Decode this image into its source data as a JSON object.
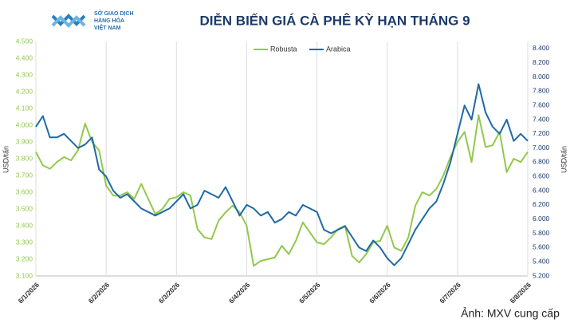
{
  "logo": [
    "SỞ GIAO DỊCH",
    "HÀNG HÓA",
    "VIỆT NAM"
  ],
  "caption": "Ảnh: MXV cung cấp",
  "chart_data": {
    "type": "line",
    "title": "DIỄN BIẾN GIÁ CÀ PHÊ KỲ HẠN THÁNG 9",
    "y_label": "USD/tấn",
    "y2_label": "USD/tấn",
    "legend": "top",
    "categories": [
      "6/1/2026",
      null,
      null,
      null,
      null,
      null,
      null,
      null,
      null,
      null,
      "6/2/2026",
      null,
      null,
      null,
      null,
      null,
      null,
      null,
      null,
      null,
      "6/3/2026",
      null,
      null,
      null,
      null,
      null,
      null,
      null,
      null,
      null,
      "6/4/2026",
      null,
      null,
      null,
      null,
      null,
      null,
      null,
      null,
      null,
      "6/5/2026",
      null,
      null,
      null,
      null,
      null,
      null,
      null,
      null,
      null,
      "6/6/2026",
      null,
      null,
      null,
      null,
      null,
      null,
      null,
      null,
      null,
      "6/7/2026",
      null,
      null,
      null,
      null,
      null,
      null,
      null,
      null,
      null,
      "6/8/2026"
    ],
    "series": [
      {
        "name": "Robusta",
        "color": "#92c84c",
        "values": [
          3840,
          3760,
          3740,
          3780,
          3810,
          3790,
          3850,
          4010,
          3900,
          3850,
          3640,
          3580,
          3580,
          3600,
          3560,
          3650,
          3560,
          3470,
          3500,
          3560,
          3570,
          3600,
          3580,
          3380,
          3330,
          3320,
          3430,
          3480,
          3520,
          3480,
          3400,
          3160,
          3190,
          3200,
          3210,
          3280,
          3230,
          3310,
          3420,
          3360,
          3300,
          3290,
          3330,
          3380,
          3400,
          3220,
          3180,
          3230,
          3300,
          3310,
          3400,
          3270,
          3250,
          3330,
          3520,
          3600,
          3580,
          3620,
          3700,
          3810,
          3900,
          3960,
          3780,
          4060,
          3870,
          3880,
          3960,
          3720,
          3800,
          3780,
          3840
        ]
      },
      {
        "name": "Arabica",
        "color": "#1f6aa5",
        "axis": "y2",
        "values": [
          7300,
          7450,
          7150,
          7150,
          7200,
          7100,
          7000,
          7050,
          7150,
          6700,
          6600,
          6400,
          6300,
          6350,
          6250,
          6150,
          6100,
          6050,
          6100,
          6150,
          6250,
          6350,
          6150,
          6200,
          6400,
          6350,
          6300,
          6450,
          6250,
          6050,
          6200,
          6150,
          6050,
          6100,
          5950,
          6000,
          6100,
          6050,
          6200,
          6150,
          6100,
          5850,
          5800,
          5850,
          5900,
          5750,
          5600,
          5550,
          5700,
          5600,
          5450,
          5350,
          5450,
          5650,
          5850,
          6000,
          6150,
          6250,
          6500,
          6800,
          7200,
          7600,
          7400,
          7900,
          7500,
          7300,
          7200,
          7400,
          7100,
          7200,
          7100
        ]
      }
    ],
    "ylim": [
      3100,
      4500
    ],
    "yticks": [
      {
        "value": 3100,
        "label": "3.100"
      },
      {
        "value": 3200,
        "label": "3.200"
      },
      {
        "value": 3300,
        "label": "3.300"
      },
      {
        "value": 3400,
        "label": "3.400"
      },
      {
        "value": 3500,
        "label": "3.500"
      },
      {
        "value": 3600,
        "label": "3.600"
      },
      {
        "value": 3700,
        "label": "3.700"
      },
      {
        "value": 3800,
        "label": "3.800"
      },
      {
        "value": 3900,
        "label": "3.900"
      },
      {
        "value": 4000,
        "label": "4.000"
      },
      {
        "value": 4100,
        "label": "4.100"
      },
      {
        "value": 4200,
        "label": "4.200"
      },
      {
        "value": 4300,
        "label": "4.300"
      },
      {
        "value": 4400,
        "label": "4.400"
      },
      {
        "value": 4500,
        "label": "4.500"
      }
    ],
    "y2lim": [
      5200,
      8500
    ],
    "y2ticks": [
      {
        "value": 5200,
        "label": "5.200"
      },
      {
        "value": 5400,
        "label": "5.400"
      },
      {
        "value": 5600,
        "label": "5.600"
      },
      {
        "value": 5800,
        "label": "5.800"
      },
      {
        "value": 6000,
        "label": "6.000"
      },
      {
        "value": 6200,
        "label": "6.200"
      },
      {
        "value": 6400,
        "label": "6.400"
      },
      {
        "value": 6600,
        "label": "6.600"
      },
      {
        "value": 6800,
        "label": "6.800"
      },
      {
        "value": 7000,
        "label": "7.000"
      },
      {
        "value": 7200,
        "label": "7.200"
      },
      {
        "value": 7400,
        "label": "7.400"
      },
      {
        "value": 7600,
        "label": "7.600"
      },
      {
        "value": 7800,
        "label": "7.800"
      },
      {
        "value": 8000,
        "label": "8.000"
      },
      {
        "value": 8200,
        "label": "8.200"
      },
      {
        "value": 8400,
        "label": "8.400"
      }
    ]
  }
}
